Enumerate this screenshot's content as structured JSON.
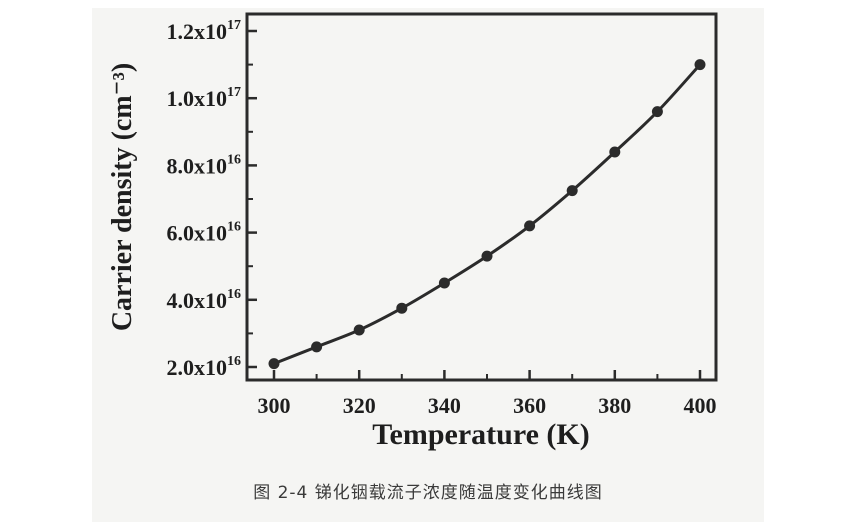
{
  "caption": "图 2-4  锑化铟载流子浓度随温度变化曲线图",
  "chart_data": {
    "type": "line",
    "title": "",
    "xlabel": "Temperature (K)",
    "ylabel": "Carrier density (cm⁻³)",
    "xlim": [
      300,
      400
    ],
    "ylim": [
      2e+16,
      1.2e+17
    ],
    "xticks": [
      300,
      320,
      340,
      360,
      380,
      400
    ],
    "yticks": [
      2e+16,
      4e+16,
      6e+16,
      8e+16,
      1e+17,
      1.2e+17
    ],
    "ytick_labels": [
      {
        "mantissa": "2.0x10",
        "exponent": "16"
      },
      {
        "mantissa": "4.0x10",
        "exponent": "16"
      },
      {
        "mantissa": "6.0x10",
        "exponent": "16"
      },
      {
        "mantissa": "8.0x10",
        "exponent": "16"
      },
      {
        "mantissa": "1.0x10",
        "exponent": "17"
      },
      {
        "mantissa": "1.2x10",
        "exponent": "17"
      }
    ],
    "grid": false,
    "legend": "none",
    "marker": "filled-circle",
    "line_color": "#2b2b2b",
    "series": [
      {
        "x": [
          300,
          310,
          320,
          330,
          340,
          350,
          360,
          370,
          380,
          390,
          400
        ],
        "y": [
          2.1e+16,
          2.6e+16,
          3.1e+16,
          3.75e+16,
          4.5e+16,
          5.3e+16,
          6.2e+16,
          7.25e+16,
          8.4e+16,
          9.6e+16,
          1.1e+17
        ]
      }
    ]
  }
}
